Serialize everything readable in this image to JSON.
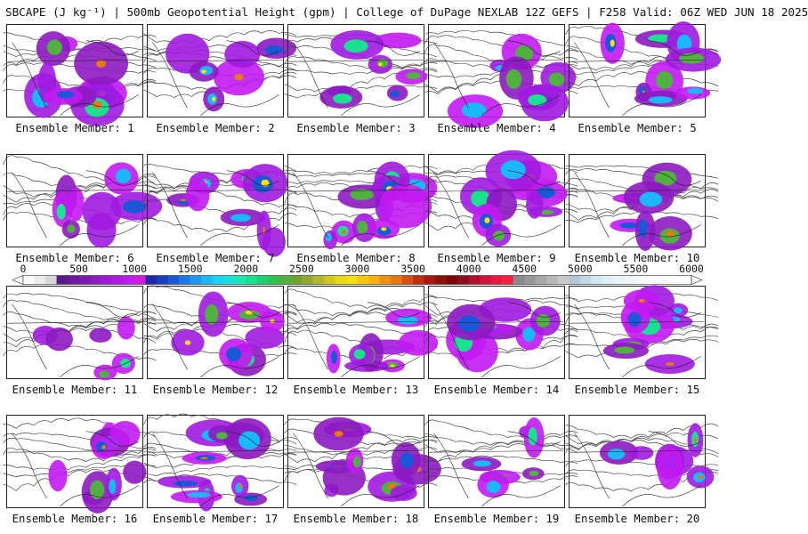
{
  "title": "SBCAPE (J kg⁻¹) | 500mb Geopotential Height (gpm) | College of DuPage NEXLAB 12Z GEFS | F258 Valid: 06Z WED JUN 18 2025",
  "colorbar": {
    "ticks": [
      "0",
      "500",
      "1000",
      "1500",
      "2000",
      "2500",
      "3000",
      "3500",
      "4000",
      "4500",
      "5000",
      "5500",
      "6000"
    ],
    "min": 0,
    "max": 6000,
    "step": 100,
    "colors": [
      "#ffffff",
      "#ebebeb",
      "#d8d8d8",
      "#5a1a88",
      "#6b1a9c",
      "#7c1ab0",
      "#8d1ac2",
      "#9e1ad6",
      "#b01ae6",
      "#c21af2",
      "#d01adc",
      "#1a2aa8",
      "#1a40c0",
      "#1a58d8",
      "#1a78ec",
      "#1a98f4",
      "#1ab8f8",
      "#1ad0f4",
      "#1ae0d8",
      "#1ae8b0",
      "#1ae090",
      "#1ad070",
      "#30c050",
      "#50b040",
      "#70a030",
      "#90a830",
      "#b0b830",
      "#d0c820",
      "#e8d818",
      "#f8e010",
      "#f8c810",
      "#f8b010",
      "#f09010",
      "#e87810",
      "#d85010",
      "#c03010",
      "#a81810",
      "#901008",
      "#7a0808",
      "#900c20",
      "#b01030",
      "#d01438",
      "#e81840",
      "#f82040",
      "#8a8a8a",
      "#999999",
      "#a8a8a8",
      "#b8b8b8",
      "#c8c8c8",
      "#b0c8d8",
      "#c0d8e8",
      "#d0e8f4",
      "#e0f0fa",
      "#e8f4fc",
      "#f0f8fe",
      "#f4fafe",
      "#f8fcff",
      "#fafdff",
      "#fcfeff",
      "#feffff"
    ]
  },
  "panels": [
    {
      "label": "Ensemble Member: 1"
    },
    {
      "label": "Ensemble Member: 2"
    },
    {
      "label": "Ensemble Member: 3"
    },
    {
      "label": "Ensemble Member: 4"
    },
    {
      "label": "Ensemble Member: 5"
    },
    {
      "label": "Ensemble Member: 6"
    },
    {
      "label": "Ensemble Member: 7"
    },
    {
      "label": "Ensemble Member: 8"
    },
    {
      "label": "Ensemble Member: 9"
    },
    {
      "label": "Ensemble Member: 10"
    },
    {
      "label": "Ensemble Member: 11"
    },
    {
      "label": "Ensemble Member: 12"
    },
    {
      "label": "Ensemble Member: 13"
    },
    {
      "label": "Ensemble Member: 14"
    },
    {
      "label": "Ensemble Member: 15"
    },
    {
      "label": "Ensemble Member: 16"
    },
    {
      "label": "Ensemble Member: 17"
    },
    {
      "label": "Ensemble Member: 18"
    },
    {
      "label": "Ensemble Member: 19"
    },
    {
      "label": "Ensemble Member: 20"
    }
  ]
}
